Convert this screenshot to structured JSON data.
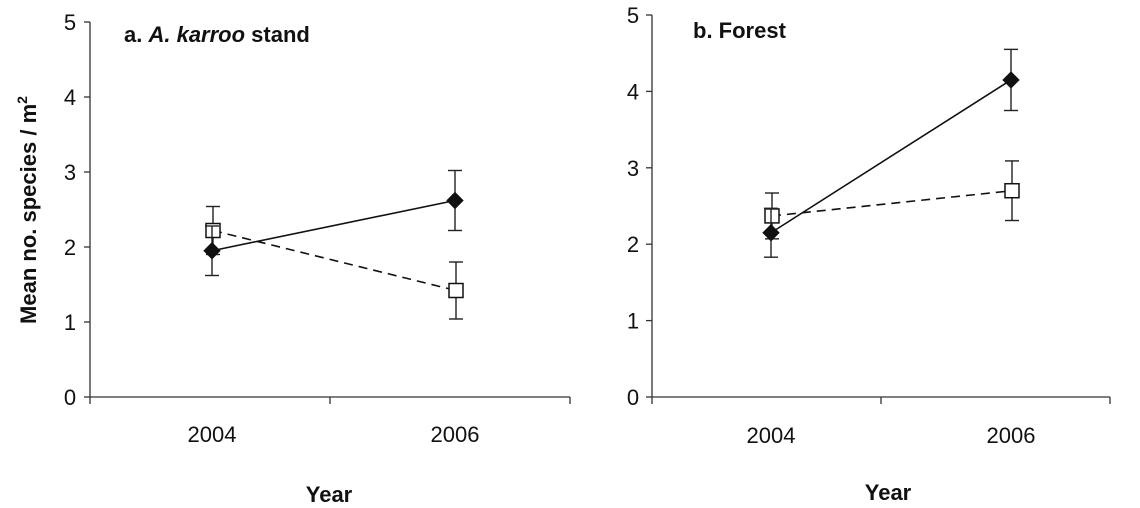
{
  "chart_data": [
    {
      "type": "line",
      "title": "a. A. karroo stand",
      "title_prefix": "a. ",
      "title_italic": "A. karroo",
      "title_suffix": " stand",
      "xlabel": "Year",
      "ylabel": "Mean no. species / m",
      "ylabel_sup": "2",
      "categories": [
        "2004",
        "2006"
      ],
      "ylim": [
        0,
        5
      ],
      "yticks": [
        "0",
        "1",
        "2",
        "3",
        "4",
        "5"
      ],
      "series": [
        {
          "marker": "filled-diamond",
          "line": "solid",
          "values": [
            1.95,
            2.62
          ],
          "errors": [
            0.33,
            0.4
          ]
        },
        {
          "marker": "open-square",
          "line": "dashed",
          "values": [
            2.22,
            1.42
          ],
          "errors": [
            0.32,
            0.38
          ]
        }
      ]
    },
    {
      "type": "line",
      "title": "b. Forest",
      "xlabel": "Year",
      "ylabel": "",
      "categories": [
        "2004",
        "2006"
      ],
      "ylim": [
        0,
        5
      ],
      "yticks": [
        "0",
        "1",
        "2",
        "3",
        "4",
        "5"
      ],
      "series": [
        {
          "marker": "filled-diamond",
          "line": "solid",
          "values": [
            2.15,
            4.15
          ],
          "errors": [
            0.32,
            0.4
          ]
        },
        {
          "marker": "open-square",
          "line": "dashed",
          "values": [
            2.37,
            2.7
          ],
          "errors": [
            0.3,
            0.39
          ]
        }
      ]
    }
  ]
}
